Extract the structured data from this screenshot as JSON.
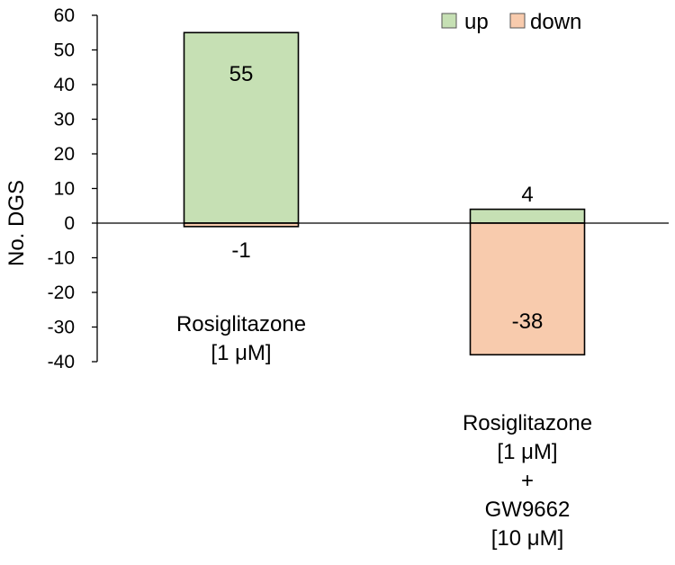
{
  "chart_data": {
    "type": "bar",
    "categories": [
      [
        "Rosiglitazone",
        "[1 μM]"
      ],
      [
        "Rosiglitazone",
        "[1 μM]",
        "+",
        "GW9662",
        "[10 μM]"
      ]
    ],
    "series": [
      {
        "name": "up",
        "values": [
          55,
          4
        ],
        "color": "#c6e0b4"
      },
      {
        "name": "down",
        "values": [
          -1,
          -38
        ],
        "color": "#f8cbad"
      }
    ],
    "data_labels": [
      [
        "55",
        "4"
      ],
      [
        "-1",
        "-38"
      ]
    ],
    "ylabel": "No. DGS",
    "xlabel": "",
    "ylim": [
      -40,
      60
    ],
    "yticks": [
      60,
      50,
      40,
      30,
      20,
      10,
      0,
      -10,
      -20,
      -30,
      -40
    ],
    "legend_position": "top-right",
    "grid": false
  }
}
